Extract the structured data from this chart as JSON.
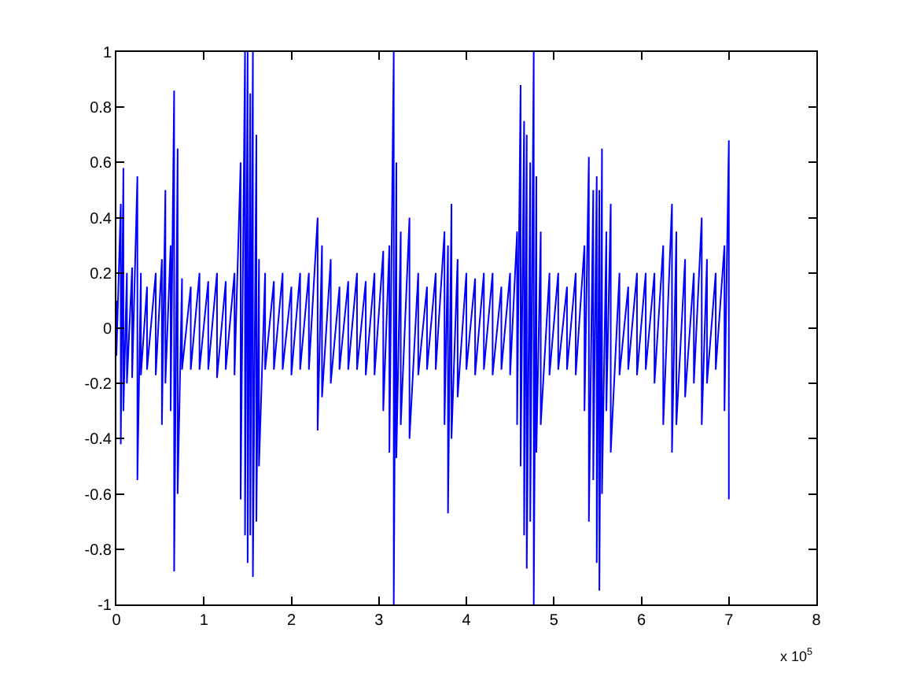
{
  "chart_data": {
    "type": "line",
    "xlim": [
      0,
      8
    ],
    "xticks": [
      0,
      1,
      2,
      3,
      4,
      5,
      6,
      7,
      8
    ],
    "ylim": [
      -1,
      1
    ],
    "yticks": [
      -1,
      -0.8,
      -0.6,
      -0.4,
      -0.2,
      0,
      0.2,
      0.4,
      0.6,
      0.8,
      1
    ],
    "marker": "none",
    "line_style": "solid",
    "annotations": [
      "x 10$^{5}$"
    ],
    "series": [
      {
        "color": "#0000ff",
        "x": [
          0.0,
          0.0,
          0.05,
          0.05,
          0.08,
          0.08,
          0.12,
          0.12,
          0.18,
          0.18,
          0.24,
          0.24,
          0.28,
          0.28,
          0.35,
          0.35,
          0.45,
          0.45,
          0.52,
          0.52,
          0.56,
          0.56,
          0.62,
          0.62,
          0.66,
          0.66,
          0.7,
          0.7,
          0.75,
          0.75,
          0.85,
          0.85,
          0.95,
          0.95,
          1.05,
          1.05,
          1.15,
          1.15,
          1.25,
          1.25,
          1.35,
          1.35,
          1.42,
          1.42,
          1.47,
          1.47,
          1.5,
          1.5,
          1.53,
          1.53,
          1.56,
          1.56,
          1.6,
          1.6,
          1.63,
          1.63,
          1.7,
          1.7,
          1.8,
          1.8,
          1.9,
          1.9,
          2.0,
          2.0,
          2.1,
          2.1,
          2.2,
          2.2,
          2.3,
          2.3,
          2.35,
          2.35,
          2.45,
          2.45,
          2.55,
          2.55,
          2.65,
          2.65,
          2.75,
          2.75,
          2.85,
          2.85,
          2.95,
          2.95,
          3.05,
          3.05,
          3.12,
          3.12,
          3.17,
          3.17,
          3.2,
          3.2,
          3.25,
          3.25,
          3.35,
          3.35,
          3.45,
          3.45,
          3.55,
          3.55,
          3.65,
          3.65,
          3.75,
          3.75,
          3.79,
          3.79,
          3.83,
          3.83,
          3.9,
          3.9,
          4.0,
          4.0,
          4.1,
          4.1,
          4.2,
          4.2,
          4.3,
          4.3,
          4.4,
          4.4,
          4.5,
          4.5,
          4.58,
          4.58,
          4.62,
          4.62,
          4.66,
          4.66,
          4.69,
          4.69,
          4.73,
          4.73,
          4.77,
          4.77,
          4.8,
          4.8,
          4.85,
          4.85,
          4.95,
          4.95,
          5.05,
          5.05,
          5.15,
          5.15,
          5.25,
          5.25,
          5.35,
          5.35,
          5.4,
          5.4,
          5.45,
          5.45,
          5.49,
          5.49,
          5.52,
          5.52,
          5.55,
          5.55,
          5.6,
          5.6,
          5.65,
          5.65,
          5.75,
          5.75,
          5.85,
          5.85,
          5.95,
          5.95,
          6.05,
          6.05,
          6.15,
          6.15,
          6.25,
          6.25,
          6.35,
          6.35,
          6.4,
          6.4,
          6.5,
          6.5,
          6.6,
          6.6,
          6.69,
          6.69,
          6.75,
          6.75,
          6.85,
          6.85,
          6.95,
          6.95,
          7.0,
          7.0
        ],
        "values": [
          0.1,
          -0.1,
          0.45,
          -0.42,
          0.58,
          -0.3,
          0.2,
          -0.2,
          0.22,
          -0.18,
          0.55,
          -0.55,
          0.2,
          -0.17,
          0.15,
          -0.15,
          0.2,
          -0.17,
          0.25,
          -0.35,
          0.5,
          -0.2,
          0.3,
          -0.3,
          0.86,
          -0.88,
          0.65,
          -0.6,
          0.18,
          -0.15,
          0.15,
          -0.15,
          0.2,
          -0.15,
          0.17,
          -0.15,
          0.2,
          -0.18,
          0.17,
          -0.15,
          0.2,
          -0.17,
          0.6,
          -0.62,
          1.0,
          -0.75,
          1.0,
          -0.85,
          0.85,
          -0.75,
          1.0,
          -0.9,
          0.7,
          -0.7,
          0.25,
          -0.5,
          0.2,
          -0.15,
          0.17,
          -0.15,
          0.2,
          -0.15,
          0.15,
          -0.17,
          0.2,
          -0.15,
          0.2,
          -0.15,
          0.4,
          -0.37,
          0.3,
          -0.25,
          0.25,
          -0.2,
          0.15,
          -0.15,
          0.17,
          -0.15,
          0.2,
          -0.15,
          0.17,
          -0.17,
          0.2,
          -0.17,
          0.28,
          -0.3,
          0.3,
          -0.45,
          1.0,
          -1.0,
          0.6,
          -0.47,
          0.35,
          -0.35,
          0.4,
          -0.4,
          0.2,
          -0.17,
          0.15,
          -0.15,
          0.2,
          -0.15,
          0.35,
          -0.35,
          0.3,
          -0.67,
          0.45,
          -0.4,
          0.25,
          -0.25,
          0.2,
          -0.15,
          0.18,
          -0.17,
          0.2,
          -0.15,
          0.2,
          -0.17,
          0.15,
          -0.15,
          0.2,
          -0.17,
          0.35,
          -0.35,
          0.88,
          -0.5,
          0.75,
          -0.75,
          0.7,
          -0.87,
          0.6,
          -0.7,
          1.0,
          -1.0,
          0.55,
          -0.45,
          0.35,
          -0.35,
          0.2,
          -0.17,
          0.2,
          -0.15,
          0.15,
          -0.15,
          0.2,
          -0.17,
          0.3,
          -0.3,
          0.62,
          -0.7,
          0.5,
          -0.55,
          0.55,
          -0.85,
          0.5,
          -0.95,
          0.65,
          -0.6,
          0.35,
          -0.3,
          0.45,
          -0.45,
          0.2,
          -0.17,
          0.15,
          -0.15,
          0.2,
          -0.17,
          0.2,
          -0.15,
          0.2,
          -0.2,
          0.3,
          -0.35,
          0.45,
          -0.45,
          0.35,
          -0.35,
          0.25,
          -0.25,
          0.2,
          -0.2,
          0.4,
          -0.35,
          0.25,
          -0.2,
          0.2,
          -0.15,
          0.3,
          -0.3,
          0.68,
          -0.62
        ]
      }
    ]
  }
}
